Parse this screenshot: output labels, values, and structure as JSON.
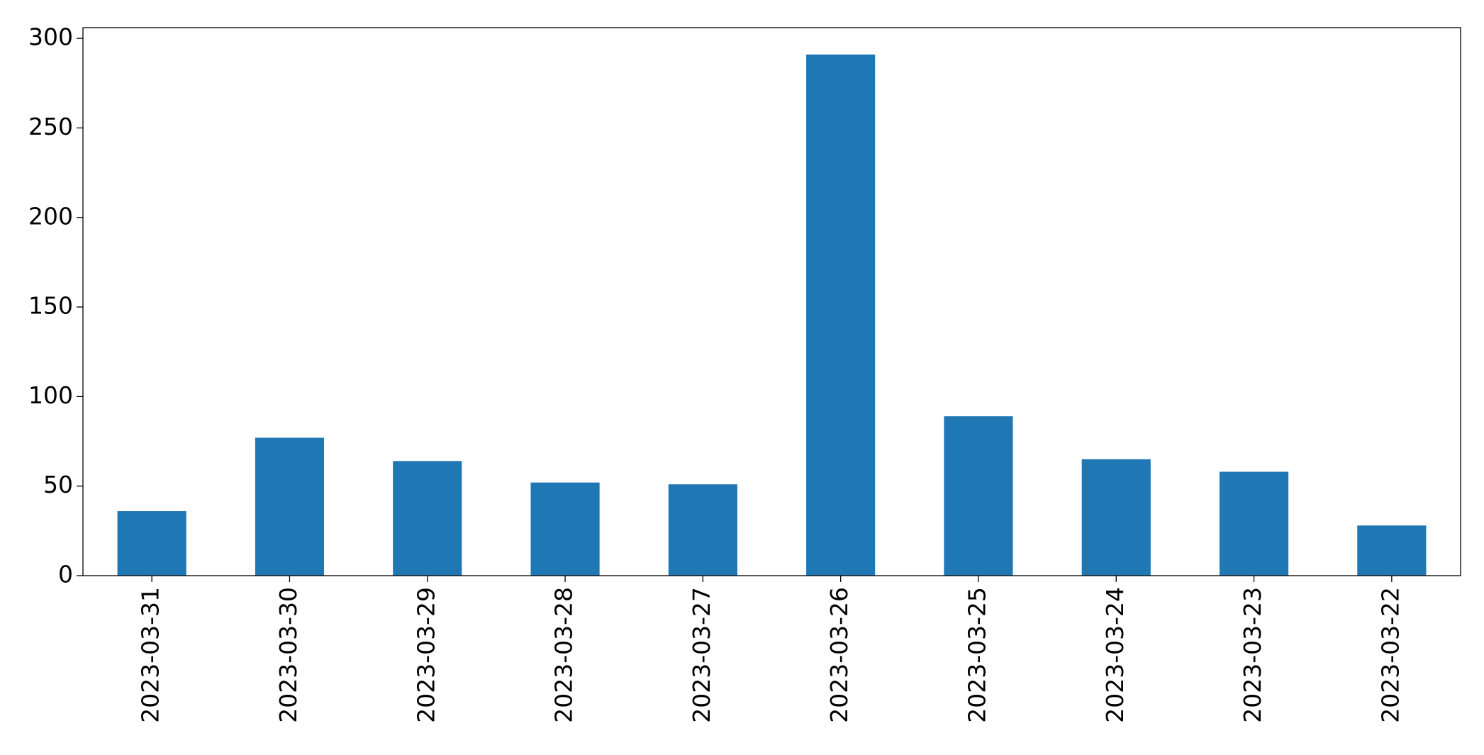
{
  "chart_data": {
    "type": "bar",
    "title": "",
    "xlabel": "",
    "ylabel": "",
    "categories": [
      "2023-03-31",
      "2023-03-30",
      "2023-03-29",
      "2023-03-28",
      "2023-03-27",
      "2023-03-26",
      "2023-03-25",
      "2023-03-24",
      "2023-03-23",
      "2023-03-22"
    ],
    "values": [
      36,
      77,
      64,
      52,
      51,
      291,
      89,
      65,
      58,
      28
    ],
    "ylim": [
      0,
      306
    ],
    "yticks": [
      0,
      50,
      100,
      150,
      200,
      250,
      300
    ],
    "grid": false,
    "legend": "none",
    "bar_color": "#1f77b4",
    "axis_color": "#000000"
  }
}
